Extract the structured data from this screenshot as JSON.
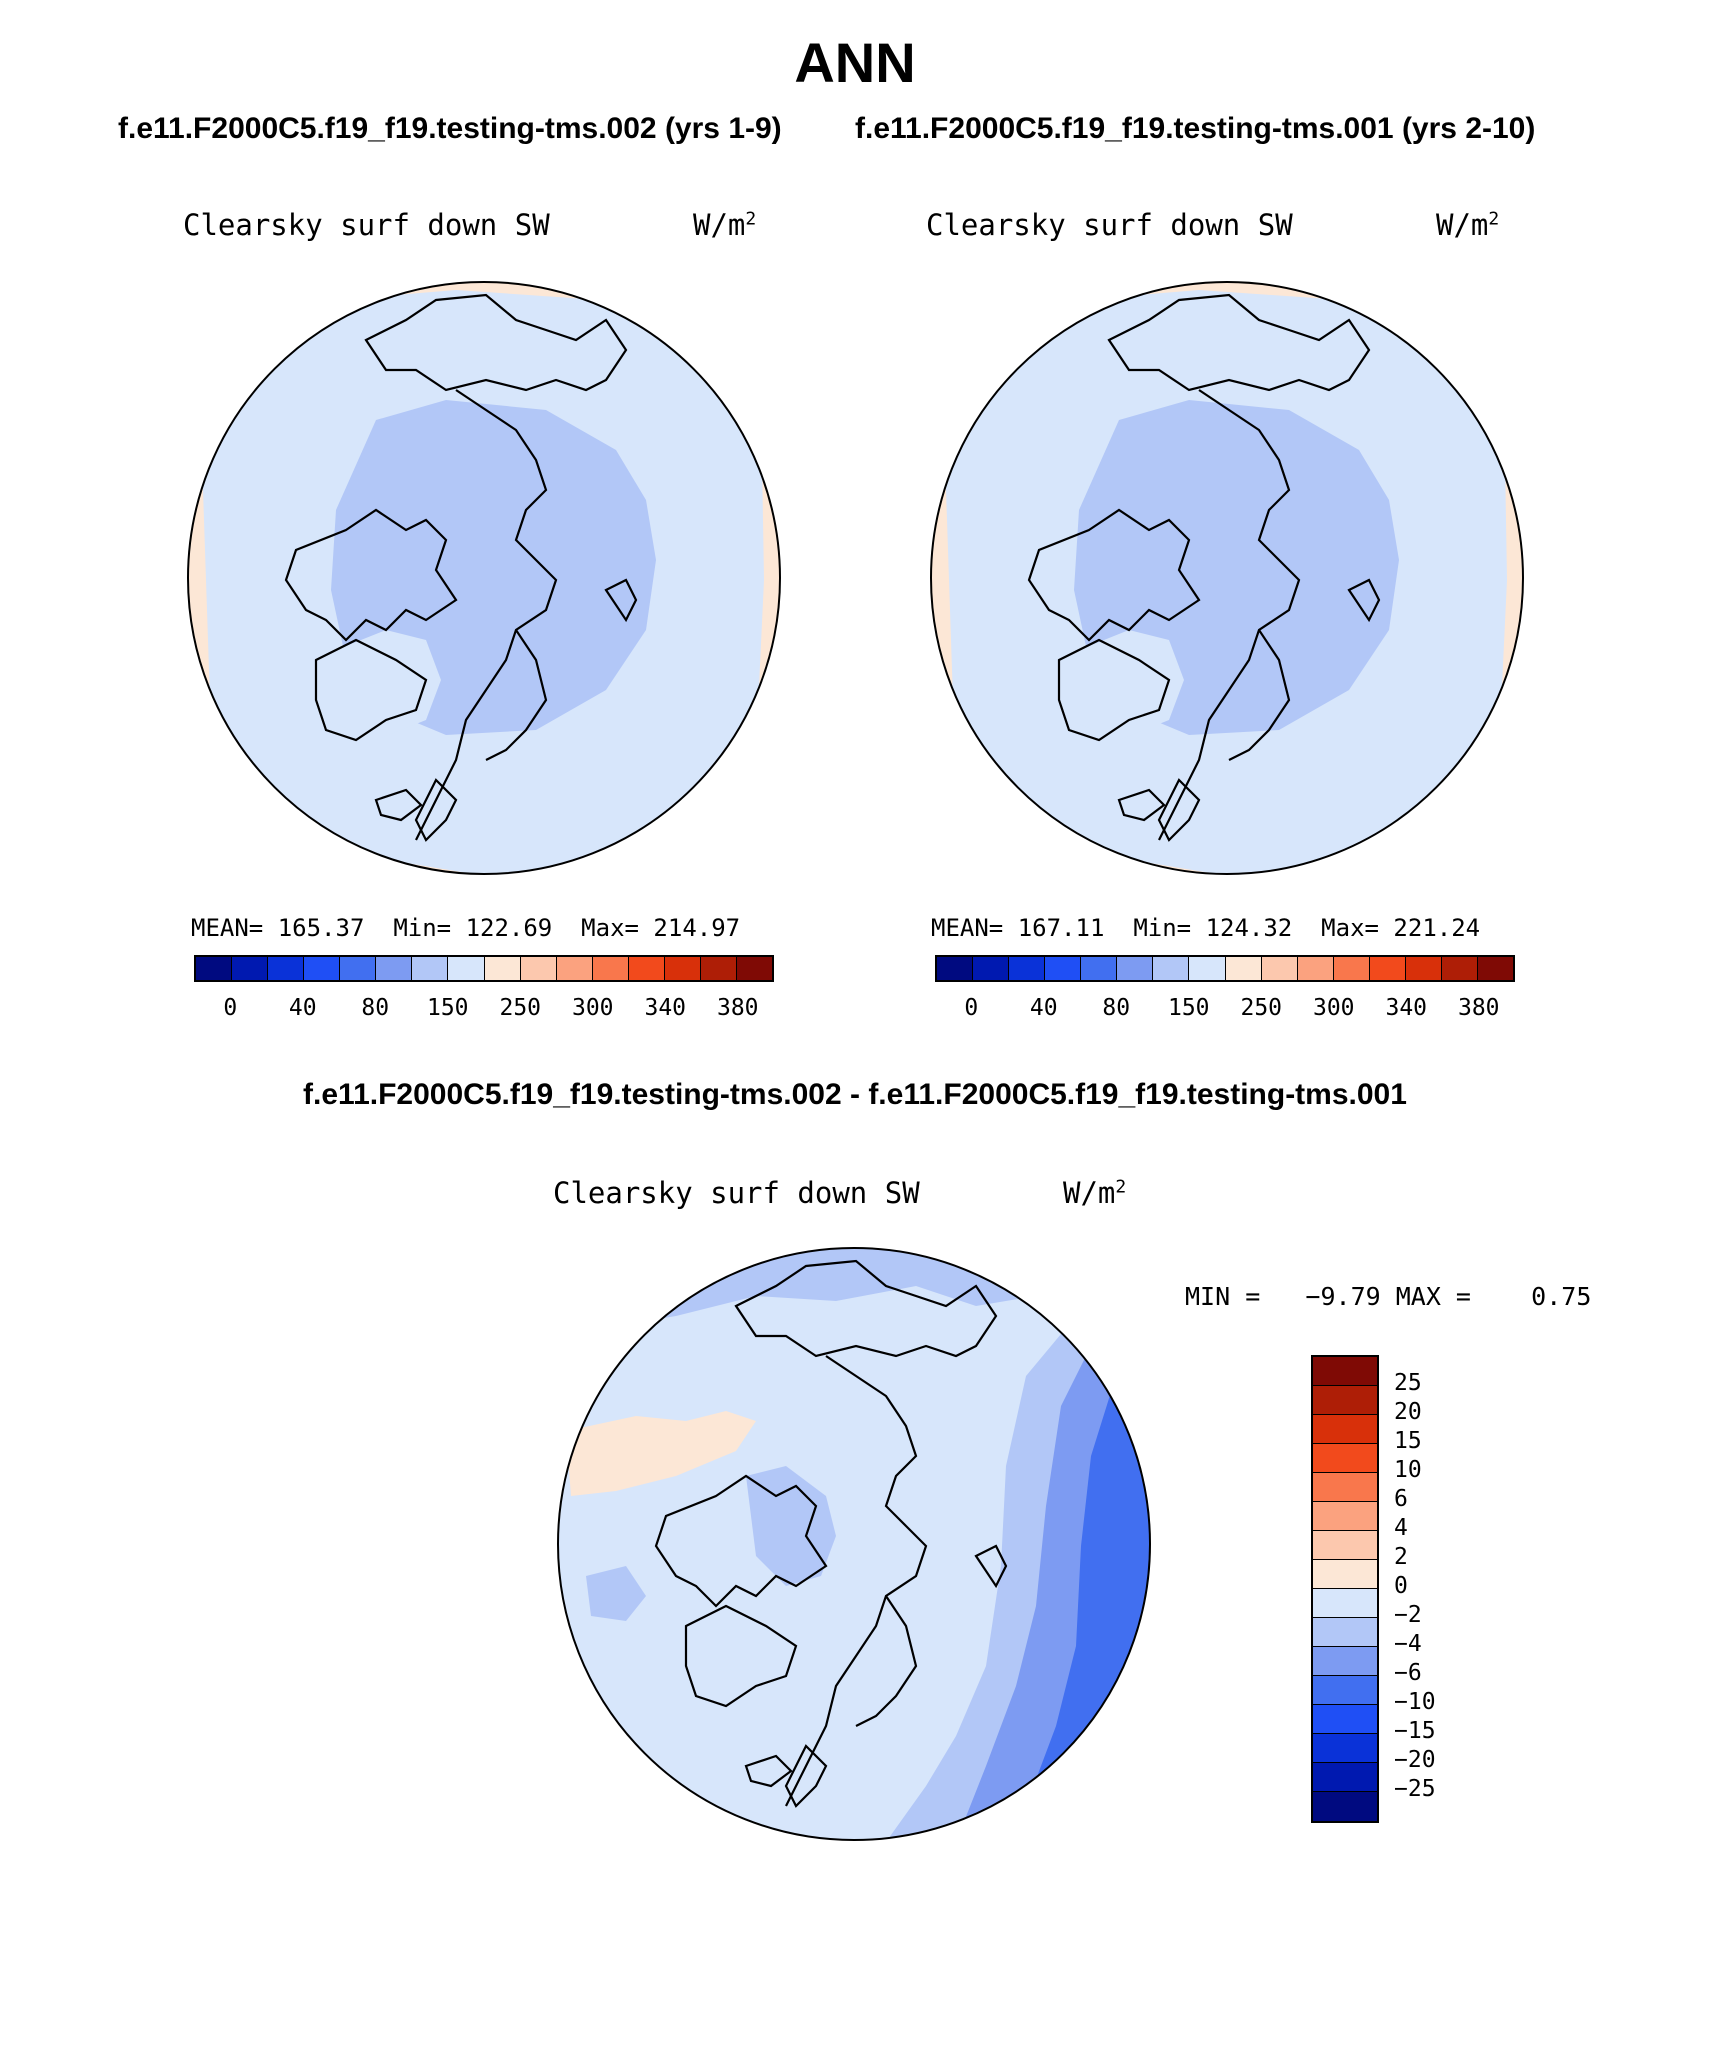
{
  "figure": {
    "season": "ANN",
    "case1_title": "f.e11.F2000C5.f19_f19.testing-tms.002 (yrs 1-9)",
    "case2_title": "f.e11.F2000C5.f19_f19.testing-tms.001 (yrs 2-10)",
    "diff_title": "f.e11.F2000C5.f19_f19.testing-tms.002 - f.e11.F2000C5.f19_f19.testing-tms.001"
  },
  "panels": {
    "left": {
      "variable": "Clearsky surf down SW",
      "units_base": "W/m",
      "units_exp": "2",
      "stats": {
        "mean_label": "MEAN=",
        "mean": "165.37",
        "min_label": "Min=",
        "min": "122.69",
        "max_label": "Max=",
        "max": "214.97"
      }
    },
    "right": {
      "variable": "Clearsky surf down SW",
      "units_base": "W/m",
      "units_exp": "2",
      "stats": {
        "mean_label": "MEAN=",
        "mean": "167.11",
        "min_label": "Min=",
        "min": "124.32",
        "max_label": "Max=",
        "max": "221.24"
      }
    },
    "diff": {
      "variable": "Clearsky surf down SW",
      "units_base": "W/m",
      "units_exp": "2",
      "minmax": "MIN =   −9.79 MAX =    0.75"
    }
  },
  "colorbars": {
    "abs": {
      "colors": [
        "#000a80",
        "#0019b0",
        "#0a32d8",
        "#1f4ff5",
        "#416ff0",
        "#7d9bf2",
        "#b2c7f7",
        "#d7e6fb",
        "#fce7d6",
        "#fcc8ae",
        "#fba27f",
        "#f9774c",
        "#f24a1c",
        "#d8300a",
        "#ae1e06",
        "#7f0a05"
      ],
      "labels": [
        "0",
        "40",
        "80",
        "150",
        "250",
        "300",
        "340",
        "380"
      ]
    },
    "diff": {
      "colors_top_to_bottom": [
        "#7f0a05",
        "#ae1e06",
        "#d8300a",
        "#f24a1c",
        "#f9774c",
        "#fba27f",
        "#fcc8ae",
        "#fce7d6",
        "#d7e6fb",
        "#b2c7f7",
        "#7d9bf2",
        "#416ff0",
        "#1f4ff5",
        "#0a32d8",
        "#0019b0",
        "#000a80"
      ],
      "labels": [
        "25",
        "20",
        "15",
        "10",
        "6",
        "4",
        "2",
        "0",
        "−2",
        "−4",
        "−6",
        "−10",
        "−15",
        "−20",
        "−25"
      ]
    }
  },
  "map_colors": {
    "abs_outer": "#fce7d6",
    "abs_mid": "#d7e6fb",
    "abs_inner": "#b2c7f7",
    "diff_base": "#d7e6fb",
    "diff_warm": "#fce7d6",
    "diff_cool": "#b2c7f7",
    "diff_cooler": "#7d9bf2",
    "diff_coolest": "#416ff0"
  }
}
